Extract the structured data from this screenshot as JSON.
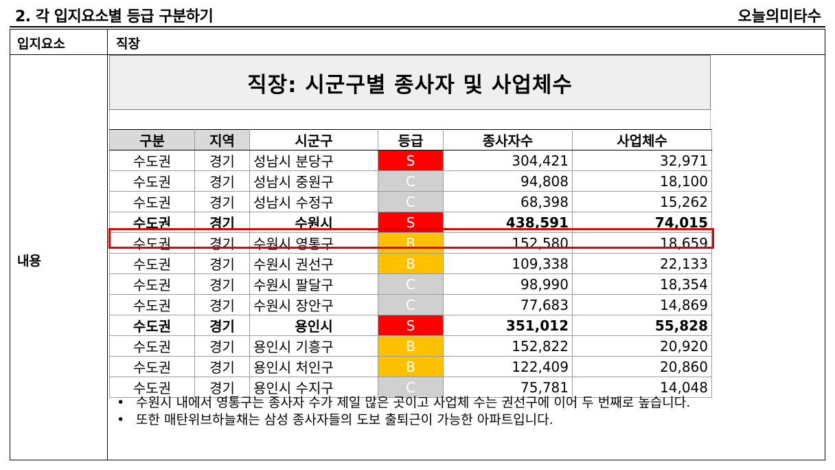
{
  "header": {
    "title": "2. 각 입지요소별 등급 구분하기",
    "brand": "오늘의미타수"
  },
  "labels": {
    "element_label": "입지요소",
    "element_value": "직장",
    "content_label": "내용"
  },
  "table": {
    "title": "직장: 시군구별 종사자 및 사업체수",
    "headers": [
      "구분",
      "지역",
      "시군구",
      "등급",
      "종사자수",
      "사업체수"
    ],
    "rows": [
      {
        "area": "수도권",
        "region": "경기",
        "district": "성남시 분당구",
        "grade": "S",
        "employees": "304,421",
        "businesses": "32,971",
        "bold": false
      },
      {
        "area": "수도권",
        "region": "경기",
        "district": "성남시 중원구",
        "grade": "C",
        "employees": "94,808",
        "businesses": "18,100",
        "bold": false
      },
      {
        "area": "수도권",
        "region": "경기",
        "district": "성남시 수정구",
        "grade": "C",
        "employees": "68,398",
        "businesses": "15,262",
        "bold": false
      },
      {
        "area": "수도권",
        "region": "경기",
        "district": "수원시",
        "grade": "S",
        "employees": "438,591",
        "businesses": "74,015",
        "bold": true
      },
      {
        "area": "수도권",
        "region": "경기",
        "district": "수원시 영통구",
        "grade": "B",
        "employees": "152,580",
        "businesses": "18,659",
        "bold": false
      },
      {
        "area": "수도권",
        "region": "경기",
        "district": "수원시 권선구",
        "grade": "B",
        "employees": "109,338",
        "businesses": "22,133",
        "bold": false
      },
      {
        "area": "수도권",
        "region": "경기",
        "district": "수원시 팔달구",
        "grade": "C",
        "employees": "98,990",
        "businesses": "18,354",
        "bold": false
      },
      {
        "area": "수도권",
        "region": "경기",
        "district": "수원시 장안구",
        "grade": "C",
        "employees": "77,683",
        "businesses": "14,869",
        "bold": false
      },
      {
        "area": "수도권",
        "region": "경기",
        "district": "용인시",
        "grade": "S",
        "employees": "351,012",
        "businesses": "55,828",
        "bold": true
      },
      {
        "area": "수도권",
        "region": "경기",
        "district": "용인시 기흥구",
        "grade": "B",
        "employees": "152,822",
        "businesses": "20,920",
        "bold": false
      },
      {
        "area": "수도권",
        "region": "경기",
        "district": "용인시 처인구",
        "grade": "B",
        "employees": "122,409",
        "businesses": "20,860",
        "bold": false
      },
      {
        "area": "수도권",
        "region": "경기",
        "district": "용인시 수지구",
        "grade": "C",
        "employees": "75,781",
        "businesses": "14,048",
        "bold": false
      }
    ]
  },
  "notes": [
    "수원시 내에서 영통구는 종사자 수가 제일 많은 곳이고 사업체 수는 권선구에 이어 두 번째로 높습니다.",
    "또한 매탄위브하늘채는 삼성 종사자들의 도보 출퇴근이 가능한 아파트입니다."
  ],
  "note_bullet": "•",
  "colors": {
    "grade_S": "#ff0000",
    "grade_B": "#ffc000",
    "grade_C": "#d0d0d0",
    "highlight": "#e00000"
  }
}
